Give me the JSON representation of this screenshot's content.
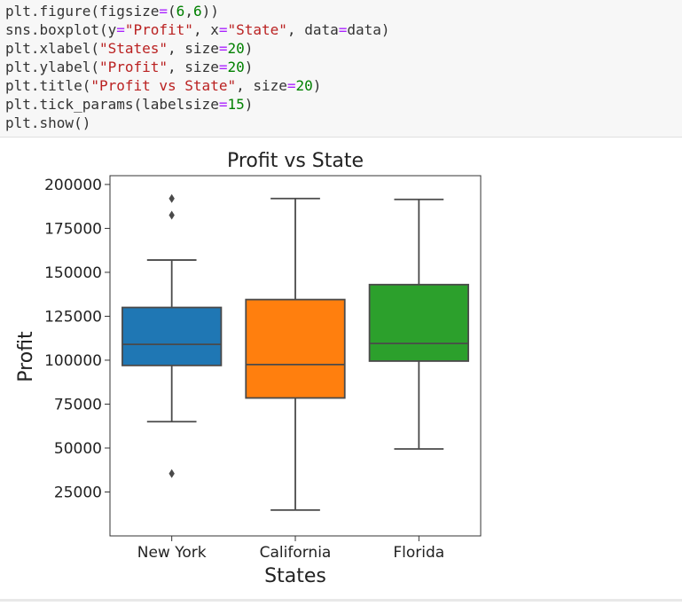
{
  "code_cell": {
    "lines": [
      [
        {
          "t": "plt.figure(figsize"
        },
        {
          "t": "=",
          "c": "op"
        },
        {
          "t": "("
        },
        {
          "t": "6",
          "c": "num"
        },
        {
          "t": ","
        },
        {
          "t": "6",
          "c": "num"
        },
        {
          "t": "))"
        }
      ],
      [
        {
          "t": "sns.boxplot(y"
        },
        {
          "t": "=",
          "c": "op"
        },
        {
          "t": "\"Profit\"",
          "c": "str"
        },
        {
          "t": ", x"
        },
        {
          "t": "=",
          "c": "op"
        },
        {
          "t": "\"State\"",
          "c": "str"
        },
        {
          "t": ", data"
        },
        {
          "t": "=",
          "c": "op"
        },
        {
          "t": "data)"
        }
      ],
      [
        {
          "t": "plt.xlabel("
        },
        {
          "t": "\"States\"",
          "c": "str"
        },
        {
          "t": ", size"
        },
        {
          "t": "=",
          "c": "op"
        },
        {
          "t": "20",
          "c": "num"
        },
        {
          "t": ")"
        }
      ],
      [
        {
          "t": "plt.ylabel("
        },
        {
          "t": "\"Profit\"",
          "c": "str"
        },
        {
          "t": ", size"
        },
        {
          "t": "=",
          "c": "op"
        },
        {
          "t": "20",
          "c": "num"
        },
        {
          "t": ")"
        }
      ],
      [
        {
          "t": "plt.title("
        },
        {
          "t": "\"Profit vs State\"",
          "c": "str"
        },
        {
          "t": ", size"
        },
        {
          "t": "=",
          "c": "op"
        },
        {
          "t": "20",
          "c": "num"
        },
        {
          "t": ")"
        }
      ],
      [
        {
          "t": "plt.tick_params(labelsize"
        },
        {
          "t": "=",
          "c": "op"
        },
        {
          "t": "15",
          "c": "num"
        },
        {
          "t": ")"
        }
      ],
      [
        {
          "t": "plt.show()"
        }
      ]
    ]
  },
  "colors": {
    "code_string": "#ba2121",
    "code_number": "#008000",
    "code_operator": "#aa22ff",
    "box_edge": "#4a4a4a"
  },
  "chart_data": {
    "type": "box",
    "title": "Profit vs State",
    "xlabel": "States",
    "ylabel": "Profit",
    "ylim": [
      0,
      205000
    ],
    "yticks": [
      25000,
      50000,
      75000,
      100000,
      125000,
      150000,
      175000,
      200000
    ],
    "ytick_labels": [
      "25000",
      "50000",
      "75000",
      "100000",
      "125000",
      "150000",
      "175000",
      "200000"
    ],
    "grid": false,
    "categories": [
      "New York",
      "California",
      "Florida"
    ],
    "boxes": [
      {
        "category": "New York",
        "color": "#1f77b4",
        "whisker_low": 65000,
        "q1": 97000,
        "median": 109000,
        "q3": 130000,
        "whisker_high": 157000,
        "outliers": [
          192000,
          182500,
          35500
        ]
      },
      {
        "category": "California",
        "color": "#ff7f0e",
        "whisker_low": 14700,
        "q1": 78500,
        "median": 97500,
        "q3": 134500,
        "whisker_high": 192000,
        "outliers": []
      },
      {
        "category": "Florida",
        "color": "#2ca02c",
        "whisker_low": 49500,
        "q1": 99500,
        "median": 109500,
        "q3": 143000,
        "whisker_high": 191500,
        "outliers": []
      }
    ]
  }
}
